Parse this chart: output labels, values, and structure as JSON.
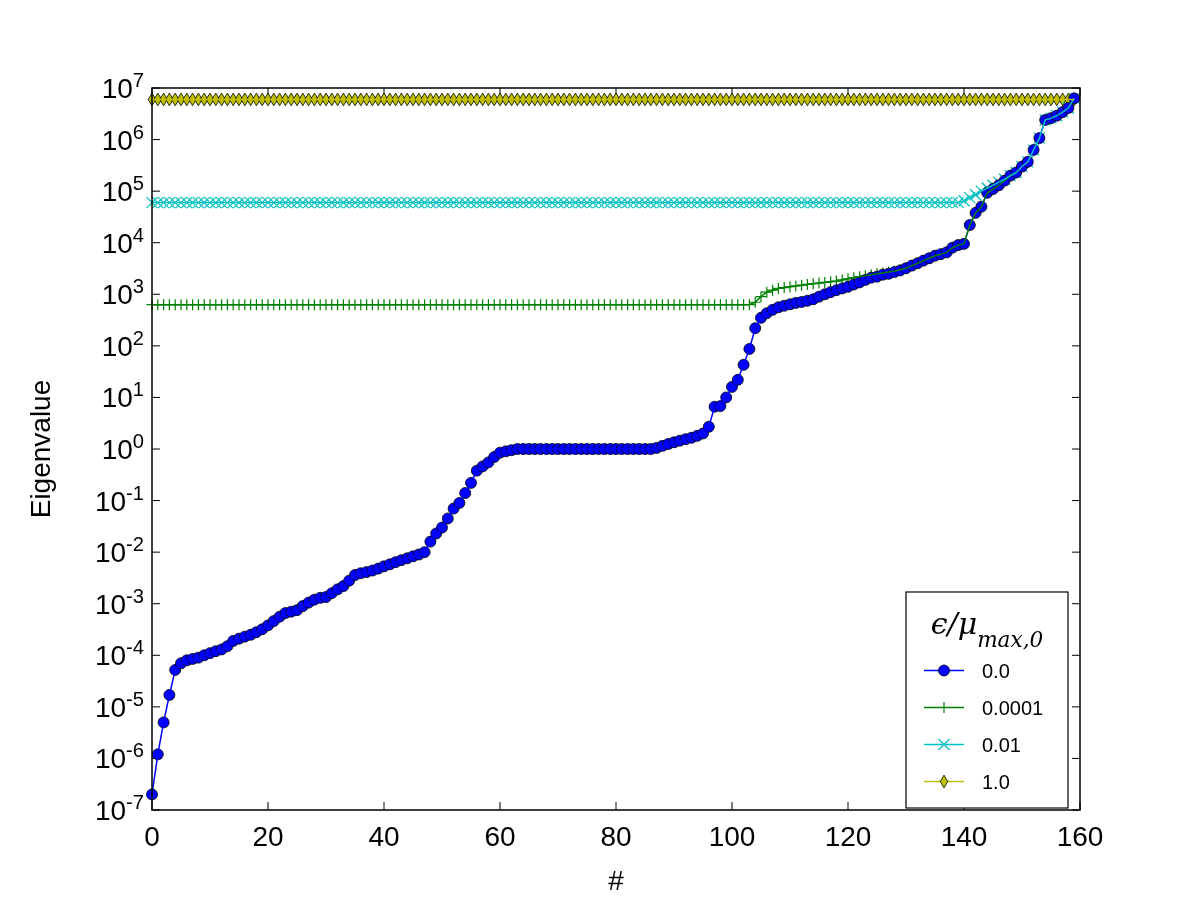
{
  "chart_data": {
    "type": "line",
    "xlabel": "#",
    "ylabel": "Eigenvalue",
    "legend_title": "ϵ/μ$_{max,0}$",
    "legend": "bottom right",
    "grid": false,
    "log": "y",
    "xlim": [
      0,
      160
    ],
    "xticks": [
      0,
      20,
      40,
      60,
      80,
      100,
      120,
      140,
      160
    ],
    "ylim": [
      1e-07,
      10000000.0
    ],
    "yticks": [
      {
        "value": 1e-07,
        "label": "10$^{-7}$"
      },
      {
        "value": 1e-06,
        "label": "10$^{-6}$"
      },
      {
        "value": 1e-05,
        "label": "10$^{-5}$"
      },
      {
        "value": 0.0001,
        "label": "10$^{-4}$"
      },
      {
        "value": 0.001,
        "label": "10$^{-3}$"
      },
      {
        "value": 0.01,
        "label": "10$^{-2}$"
      },
      {
        "value": 0.1,
        "label": "10$^{-1}$"
      },
      {
        "value": 1,
        "label": "10$^{0}$"
      },
      {
        "value": 10,
        "label": "10$^{1}$"
      },
      {
        "value": 100,
        "label": "10$^{2}$"
      },
      {
        "value": 1000,
        "label": "10$^{3}$"
      },
      {
        "value": 10000,
        "label": "10$^{4}$"
      },
      {
        "value": 100000,
        "label": "10$^{5}$"
      },
      {
        "value": 1000000,
        "label": "10$^{6}$"
      },
      {
        "value": 10000000,
        "label": "10$^{7}$"
      }
    ],
    "x": [
      0,
      1,
      2,
      3,
      4,
      5,
      6,
      7,
      8,
      9,
      10,
      11,
      12,
      13,
      14,
      15,
      16,
      17,
      18,
      19,
      20,
      21,
      22,
      23,
      24,
      25,
      26,
      27,
      28,
      29,
      30,
      31,
      32,
      33,
      34,
      35,
      36,
      37,
      38,
      39,
      40,
      41,
      42,
      43,
      44,
      45,
      46,
      47,
      48,
      49,
      50,
      51,
      52,
      53,
      54,
      55,
      56,
      57,
      58,
      59,
      60,
      61,
      62,
      63,
      64,
      65,
      66,
      67,
      68,
      69,
      70,
      71,
      72,
      73,
      74,
      75,
      76,
      77,
      78,
      79,
      80,
      81,
      82,
      83,
      84,
      85,
      86,
      87,
      88,
      89,
      90,
      91,
      92,
      93,
      94,
      95,
      96,
      97,
      98,
      99,
      100,
      101,
      102,
      103,
      104,
      105,
      106,
      107,
      108,
      109,
      110,
      111,
      112,
      113,
      114,
      115,
      116,
      117,
      118,
      119,
      120,
      121,
      122,
      123,
      124,
      125,
      126,
      127,
      128,
      129,
      130,
      131,
      132,
      133,
      134,
      135,
      136,
      137,
      138,
      139,
      140,
      141,
      142,
      143,
      144,
      145,
      146,
      147,
      148,
      149,
      150,
      151,
      152,
      153,
      154,
      155,
      156,
      157,
      158,
      159
    ],
    "series": [
      {
        "name": "0.0",
        "color": "#0000ff",
        "marker": "circle",
        "values": [
          2e-07,
          1.2e-06,
          5e-06,
          1.7e-05,
          5.2e-05,
          7e-05,
          8e-05,
          8.5e-05,
          9e-05,
          0.0001,
          0.00011,
          0.00012,
          0.00013,
          0.00015,
          0.00019,
          0.00021,
          0.00023,
          0.00025,
          0.00028,
          0.00032,
          0.00038,
          0.00046,
          0.00056,
          0.00066,
          0.0007,
          0.00075,
          0.0009,
          0.00105,
          0.0012,
          0.0013,
          0.00135,
          0.0016,
          0.0019,
          0.0022,
          0.0028,
          0.0036,
          0.0039,
          0.0041,
          0.0044,
          0.0048,
          0.0053,
          0.0058,
          0.0064,
          0.007,
          0.0076,
          0.0083,
          0.009,
          0.01,
          0.016,
          0.023,
          0.03,
          0.045,
          0.07,
          0.09,
          0.14,
          0.22,
          0.38,
          0.46,
          0.55,
          0.7,
          0.85,
          0.9,
          0.95,
          1,
          1,
          1,
          1,
          1,
          1,
          1,
          1,
          1,
          1,
          1,
          1,
          1,
          1,
          1,
          1,
          1,
          1,
          1,
          1,
          1,
          1,
          1,
          1,
          1.05,
          1.15,
          1.25,
          1.35,
          1.45,
          1.55,
          1.65,
          1.8,
          2,
          2.7,
          6.6,
          6.8,
          10,
          16,
          22,
          43,
          87,
          220,
          350,
          430,
          500,
          560,
          600,
          640,
          680,
          710,
          750,
          800,
          900,
          1000,
          1100,
          1200,
          1300,
          1400,
          1550,
          1700,
          1900,
          2100,
          2200,
          2400,
          2500,
          2700,
          2900,
          3200,
          3600,
          4000,
          4500,
          5000,
          5600,
          6000,
          6500,
          8000,
          9000,
          9500,
          22000.0,
          38000.0,
          50000.0,
          93000.0,
          110000.0,
          130000.0,
          160000.0,
          200000.0,
          230000.0,
          300000.0,
          370000.0,
          630000.0,
          1070000.0,
          2400000.0,
          2600000.0,
          2900000.0,
          3400000.0,
          4100000.0,
          6300000.0
        ]
      },
      {
        "name": "0.0001",
        "color": "#008000",
        "marker": "plus",
        "values": [
          630,
          630,
          630,
          630,
          630,
          630,
          630,
          630,
          630,
          630,
          630,
          630,
          630,
          630,
          630,
          630,
          630,
          630,
          630,
          630,
          630,
          630,
          630,
          630,
          630,
          630,
          630,
          630,
          630,
          630,
          630,
          630,
          630,
          630,
          630,
          630,
          630,
          630,
          630,
          630,
          630,
          630,
          630,
          630,
          630,
          630,
          630,
          630,
          630,
          630,
          630,
          630,
          630,
          630,
          630,
          630,
          630,
          630,
          630,
          630,
          630,
          630,
          630,
          630,
          630,
          630,
          630,
          630,
          630,
          630,
          630,
          630,
          630,
          630,
          630,
          630,
          630,
          630,
          630,
          630,
          630,
          630,
          630,
          630,
          630,
          630,
          630,
          630,
          630,
          630,
          630,
          630,
          630,
          630,
          630,
          630,
          630,
          630,
          630,
          630,
          630,
          630,
          630,
          630,
          700,
          900,
          1100,
          1200,
          1300,
          1350,
          1400,
          1450,
          1500,
          1550,
          1600,
          1650,
          1700,
          1750,
          1800,
          1900,
          2000,
          2100,
          2200,
          2300,
          2400,
          2500,
          2600,
          2700,
          2800,
          3000,
          3200,
          3600,
          4000,
          4500,
          5000,
          5600,
          6000,
          6500,
          8000,
          9000,
          9500,
          22000.0,
          38000.0,
          50000.0,
          93000.0,
          110000.0,
          130000.0,
          160000.0,
          200000.0,
          230000.0,
          null,
          null,
          null,
          null,
          null,
          null,
          null,
          null,
          null,
          null
        ]
      },
      {
        "name": "0.01",
        "color": "#00bfbf",
        "marker": "cross",
        "values": [
          60000.0,
          60000.0,
          60000.0,
          60000.0,
          60000.0,
          60000.0,
          60000.0,
          60000.0,
          60000.0,
          60000.0,
          60000.0,
          60000.0,
          60000.0,
          60000.0,
          60000.0,
          60000.0,
          60000.0,
          60000.0,
          60000.0,
          60000.0,
          60000.0,
          60000.0,
          60000.0,
          60000.0,
          60000.0,
          60000.0,
          60000.0,
          60000.0,
          60000.0,
          60000.0,
          60000.0,
          60000.0,
          60000.0,
          60000.0,
          60000.0,
          60000.0,
          60000.0,
          60000.0,
          60000.0,
          60000.0,
          60000.0,
          60000.0,
          60000.0,
          60000.0,
          60000.0,
          60000.0,
          60000.0,
          60000.0,
          60000.0,
          60000.0,
          60000.0,
          60000.0,
          60000.0,
          60000.0,
          60000.0,
          60000.0,
          60000.0,
          60000.0,
          60000.0,
          60000.0,
          60000.0,
          60000.0,
          60000.0,
          60000.0,
          60000.0,
          60000.0,
          60000.0,
          60000.0,
          60000.0,
          60000.0,
          60000.0,
          60000.0,
          60000.0,
          60000.0,
          60000.0,
          60000.0,
          60000.0,
          60000.0,
          60000.0,
          60000.0,
          60000.0,
          60000.0,
          60000.0,
          60000.0,
          60000.0,
          60000.0,
          60000.0,
          60000.0,
          60000.0,
          60000.0,
          60000.0,
          60000.0,
          60000.0,
          60000.0,
          60000.0,
          60000.0,
          60000.0,
          60000.0,
          60000.0,
          60000.0,
          60000.0,
          60000.0,
          60000.0,
          60000.0,
          60000.0,
          60000.0,
          60000.0,
          60000.0,
          60000.0,
          60000.0,
          60000.0,
          60000.0,
          60000.0,
          60000.0,
          60000.0,
          60000.0,
          60000.0,
          60000.0,
          60000.0,
          60000.0,
          60000.0,
          60000.0,
          60000.0,
          60000.0,
          60000.0,
          60000.0,
          60000.0,
          60000.0,
          60000.0,
          60000.0,
          60000.0,
          60000.0,
          60000.0,
          60000.0,
          60000.0,
          60000.0,
          60000.0,
          60000.0,
          60000.0,
          60000.0,
          65000.0,
          75000.0,
          85000.0,
          100000.0,
          115000.0,
          130000.0,
          150000.0,
          170000.0,
          200000.0,
          230000.0,
          300000.0,
          370000.0,
          630000.0,
          1070000.0,
          2400000.0,
          2600000.0,
          2900000.0,
          3400000.0,
          4100000.0,
          6300000.0
        ]
      },
      {
        "name": "1.0",
        "color": "#bfbf00",
        "marker": "diamond",
        "values": [
          6000000.0,
          6000000.0,
          6000000.0,
          6000000.0,
          6000000.0,
          6000000.0,
          6000000.0,
          6000000.0,
          6000000.0,
          6000000.0,
          6000000.0,
          6000000.0,
          6000000.0,
          6000000.0,
          6000000.0,
          6000000.0,
          6000000.0,
          6000000.0,
          6000000.0,
          6000000.0,
          6000000.0,
          6000000.0,
          6000000.0,
          6000000.0,
          6000000.0,
          6000000.0,
          6000000.0,
          6000000.0,
          6000000.0,
          6000000.0,
          6000000.0,
          6000000.0,
          6000000.0,
          6000000.0,
          6000000.0,
          6000000.0,
          6000000.0,
          6000000.0,
          6000000.0,
          6000000.0,
          6000000.0,
          6000000.0,
          6000000.0,
          6000000.0,
          6000000.0,
          6000000.0,
          6000000.0,
          6000000.0,
          6000000.0,
          6000000.0,
          6000000.0,
          6000000.0,
          6000000.0,
          6000000.0,
          6000000.0,
          6000000.0,
          6000000.0,
          6000000.0,
          6000000.0,
          6000000.0,
          6000000.0,
          6000000.0,
          6000000.0,
          6000000.0,
          6000000.0,
          6000000.0,
          6000000.0,
          6000000.0,
          6000000.0,
          6000000.0,
          6000000.0,
          6000000.0,
          6000000.0,
          6000000.0,
          6000000.0,
          6000000.0,
          6000000.0,
          6000000.0,
          6000000.0,
          6000000.0,
          6000000.0,
          6000000.0,
          6000000.0,
          6000000.0,
          6000000.0,
          6000000.0,
          6000000.0,
          6000000.0,
          6000000.0,
          6000000.0,
          6000000.0,
          6000000.0,
          6000000.0,
          6000000.0,
          6000000.0,
          6000000.0,
          6000000.0,
          6000000.0,
          6000000.0,
          6000000.0,
          6000000.0,
          6000000.0,
          6000000.0,
          6000000.0,
          6000000.0,
          6000000.0,
          6000000.0,
          6000000.0,
          6000000.0,
          6000000.0,
          6000000.0,
          6000000.0,
          6000000.0,
          6000000.0,
          6000000.0,
          6000000.0,
          6000000.0,
          6000000.0,
          6000000.0,
          6000000.0,
          6000000.0,
          6000000.0,
          6000000.0,
          6000000.0,
          6000000.0,
          6000000.0,
          6000000.0,
          6000000.0,
          6000000.0,
          6000000.0,
          6000000.0,
          6000000.0,
          6000000.0,
          6000000.0,
          6000000.0,
          6000000.0,
          6000000.0,
          6000000.0,
          6000000.0,
          6000000.0,
          6000000.0,
          6000000.0,
          6000000.0,
          6000000.0,
          6000000.0,
          6000000.0,
          6000000.0,
          6000000.0,
          6000000.0,
          6000000.0,
          6000000.0,
          6000000.0,
          6000000.0,
          6000000.0,
          6000000.0,
          6000000.0,
          6000000.0,
          6000000.0,
          6000000.0,
          6000000.0
        ]
      }
    ]
  }
}
